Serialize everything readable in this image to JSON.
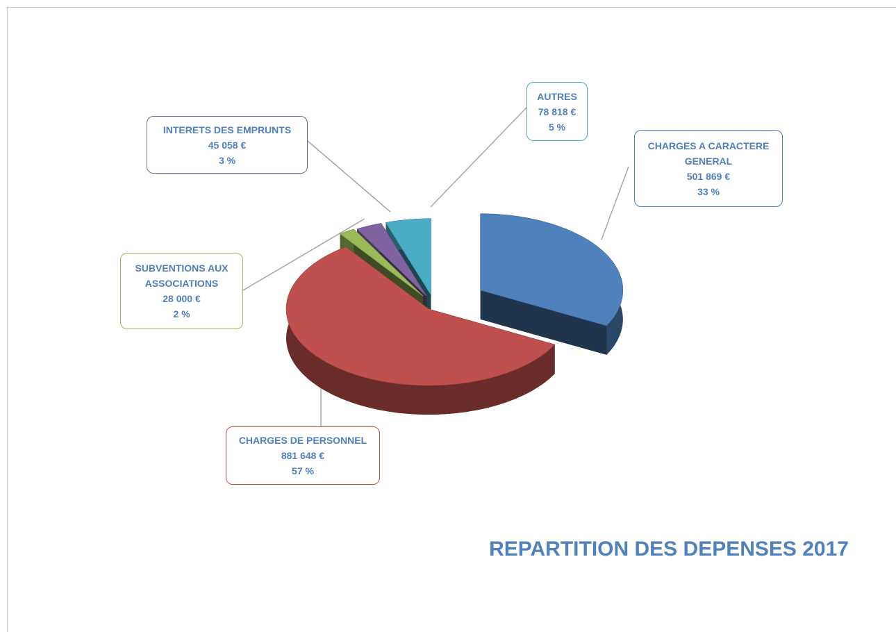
{
  "chart_data": {
    "type": "pie",
    "title": "REPARTITION DES DEPENSES 2017",
    "categories": [
      "CHARGES A CARACTERE GENERAL",
      "CHARGES DE PERSONNEL",
      "SUBVENTIONS AUX ASSOCIATIONS",
      "INTERETS DES EMPRUNTS",
      "AUTRES"
    ],
    "values": [
      501869,
      881648,
      28000,
      45058,
      78818
    ],
    "value_labels": [
      "501 869 €",
      "881 648 €",
      "28 000 €",
      "45 058 €",
      "78 818 €"
    ],
    "percent_labels": [
      "33 %",
      "57 %",
      "2 %",
      "3 %",
      "5 %"
    ],
    "colors": [
      "#4f81bd",
      "#c0504d",
      "#9bbb59",
      "#8064a2",
      "#4bacc6"
    ],
    "three_d": true,
    "exploded": true
  }
}
